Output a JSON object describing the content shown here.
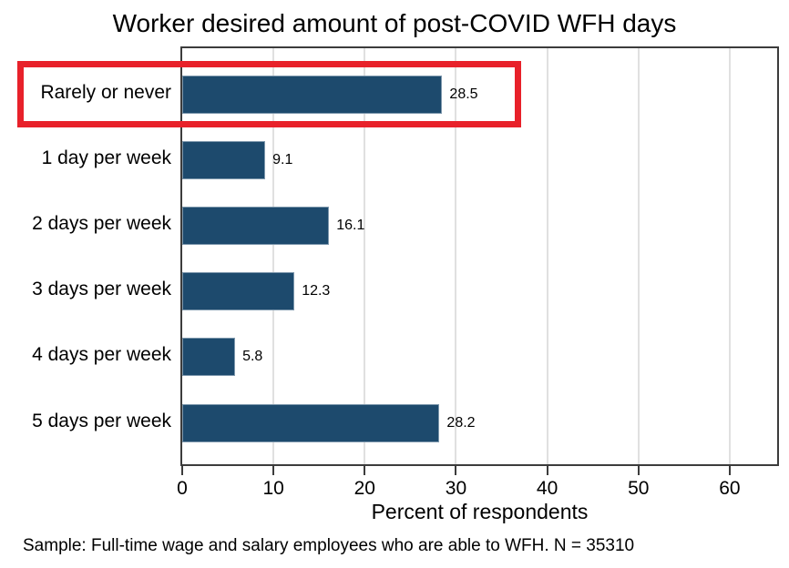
{
  "chart_data": {
    "type": "bar",
    "orientation": "horizontal",
    "title": "Worker desired amount of post-COVID WFH days",
    "xlabel": "Percent of respondents",
    "ylabel": "",
    "categories": [
      "Rarely or never",
      "1 day per week",
      "2 days per week",
      "3 days per week",
      "4 days per week",
      "5 days per week"
    ],
    "values": [
      28.5,
      9.1,
      16.1,
      12.3,
      5.8,
      28.2
    ],
    "value_labels": [
      "28.5",
      "9.1",
      "16.1",
      "12.3",
      "5.8",
      "28.2"
    ],
    "xticks": [
      0,
      10,
      20,
      30,
      40,
      50,
      60
    ],
    "xlim": [
      0,
      65.2
    ],
    "grid": true,
    "legend": "none",
    "bar_color": "#1d4a6d",
    "gridline_color": "#e0e0e0"
  },
  "annotation": {
    "shape": "rectangle",
    "color": "#e8212a",
    "highlighted_category": "Rarely or never",
    "highlighted_value": "28.5"
  },
  "footnote": "Sample: Full-time wage and salary employees who are able to WFH. N = 35310"
}
